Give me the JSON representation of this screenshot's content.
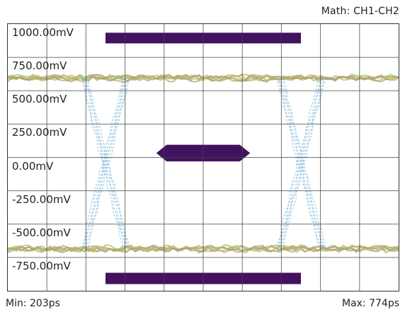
{
  "header": {
    "math_label": "Math: CH1-CH2"
  },
  "footer": {
    "min_label": "Min: 203ps",
    "max_label": "Max: 774ps"
  },
  "colors": {
    "mask": "#42125e",
    "eye_transition": "#7fb8dc",
    "eye_level_primary": "#b49c6a",
    "eye_level_secondary": "#9ec25a",
    "grid": "#444444"
  },
  "chart_data": {
    "type": "eye-diagram",
    "title": "Math: CH1-CH2",
    "y_tick_labels": [
      "1000.00mV",
      "750.00mV",
      "500.00mV",
      "250.00mV",
      "0.00mV",
      "-250.00mV",
      "-500.00mV",
      "-750.00mV"
    ],
    "y_unit": "mV",
    "ylim": [
      -875,
      1125
    ],
    "x_range_ps": [
      203,
      774
    ],
    "grid": true,
    "grid_divisions": {
      "x": 10,
      "y": 8
    },
    "high_level_mV": 720,
    "low_level_mV": -560,
    "crossings": [
      {
        "x_div": 2.5
      },
      {
        "x_div": 7.5
      }
    ],
    "masks": [
      {
        "shape": "rect",
        "x_div": [
          2.5,
          7.5
        ],
        "y_mV": [
          980,
          1060
        ]
      },
      {
        "shape": "hexagon",
        "x_div": [
          3.8,
          6.2
        ],
        "y_mV": [
          95,
          220
        ]
      },
      {
        "shape": "rect",
        "x_div": [
          2.5,
          7.5
        ],
        "y_mV": [
          -825,
          -740
        ]
      }
    ]
  }
}
